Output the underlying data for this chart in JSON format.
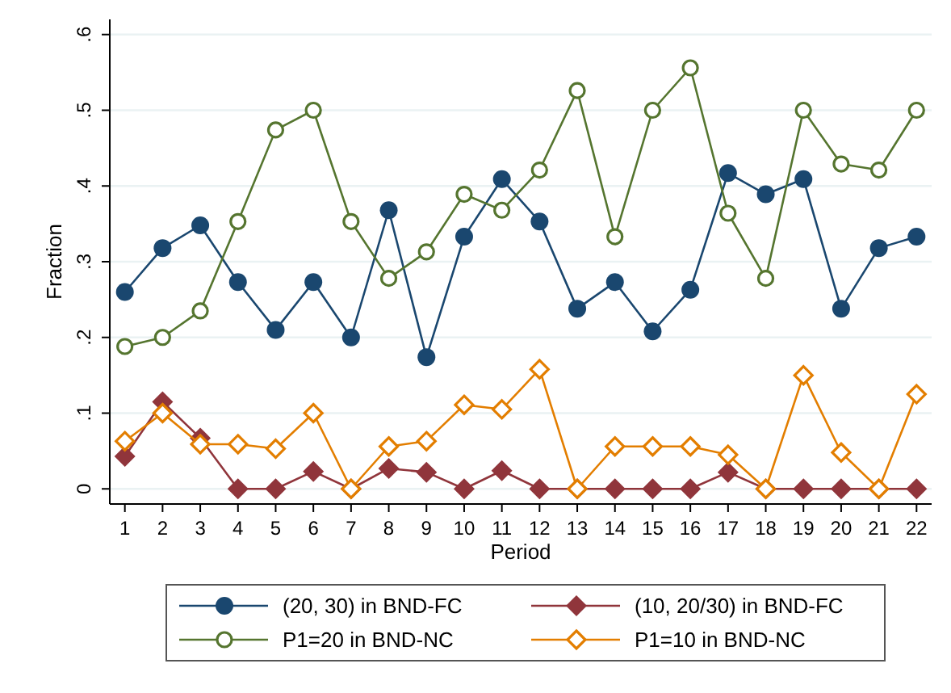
{
  "chart_data": {
    "type": "line",
    "xlabel": "Period",
    "ylabel": "Fraction",
    "x": [
      1,
      2,
      3,
      4,
      5,
      6,
      7,
      8,
      9,
      10,
      11,
      12,
      13,
      14,
      15,
      16,
      17,
      18,
      19,
      20,
      21,
      22
    ],
    "xlim": [
      0.6,
      22.4
    ],
    "xticks": [
      1,
      2,
      3,
      4,
      5,
      6,
      7,
      8,
      9,
      10,
      11,
      12,
      13,
      14,
      15,
      16,
      17,
      18,
      19,
      20,
      21,
      22
    ],
    "ylim": [
      -0.02,
      0.62
    ],
    "yticks": [
      {
        "value": 0,
        "label": "0"
      },
      {
        "value": 0.1,
        "label": ".1"
      },
      {
        "value": 0.2,
        "label": ".2"
      },
      {
        "value": 0.3,
        "label": ".3"
      },
      {
        "value": 0.4,
        "label": ".4"
      },
      {
        "value": 0.5,
        "label": ".5"
      },
      {
        "value": 0.6,
        "label": ".6"
      }
    ],
    "grid": "y",
    "legend": "bottom",
    "series": [
      {
        "name": "(20, 30) in BND-FC",
        "color": "#1a476f",
        "marker": "circle",
        "values": [
          0.26,
          0.318,
          0.348,
          0.273,
          0.21,
          0.273,
          0.2,
          0.368,
          0.174,
          0.333,
          0.409,
          0.353,
          0.238,
          0.273,
          0.208,
          0.263,
          0.417,
          0.389,
          0.409,
          0.238,
          0.318,
          0.333
        ]
      },
      {
        "name": "(10, 20/30) in BND-FC",
        "color": "#90353b",
        "marker": "diamond",
        "values": [
          0.043,
          0.115,
          0.067,
          0,
          0,
          0.023,
          0,
          0.027,
          0.022,
          0,
          0.024,
          0,
          0,
          0,
          0,
          0,
          0.022,
          0,
          0,
          0,
          0,
          0
        ]
      },
      {
        "name": "P1=20 in BND-NC",
        "color": "#55752f",
        "marker": "circle-open",
        "values": [
          0.188,
          0.2,
          0.235,
          0.353,
          0.474,
          0.5,
          0.353,
          0.278,
          0.313,
          0.389,
          0.368,
          0.421,
          0.526,
          0.333,
          0.5,
          0.556,
          0.364,
          0.278,
          0.5,
          0.429,
          0.421,
          0.5
        ]
      },
      {
        "name": "P1=10 in BND-NC",
        "color": "#e37e00",
        "marker": "diamond-open",
        "values": [
          0.063,
          0.1,
          0.059,
          0.059,
          0.053,
          0.1,
          0,
          0.056,
          0.063,
          0.111,
          0.105,
          0.158,
          0,
          0.056,
          0.056,
          0.056,
          0.045,
          0,
          0.15,
          0.048,
          0,
          0.125
        ]
      }
    ]
  }
}
